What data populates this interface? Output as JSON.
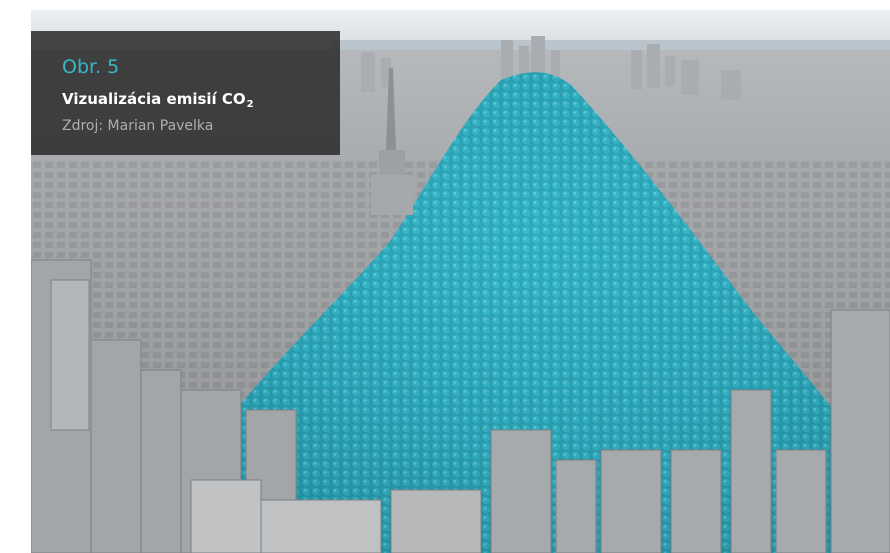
{
  "caption": {
    "label": "Obr. 5",
    "title": "Vizualizácia emisií CO",
    "title_subscript": "2",
    "source": "Zdroj: Marian Pavelka"
  },
  "colors": {
    "label_accent": "#35b8c8",
    "spheres": "#2ea6b8",
    "buildings": "#9b9b9b",
    "sky": "#d7dde2",
    "water": "#b9c4cc"
  }
}
